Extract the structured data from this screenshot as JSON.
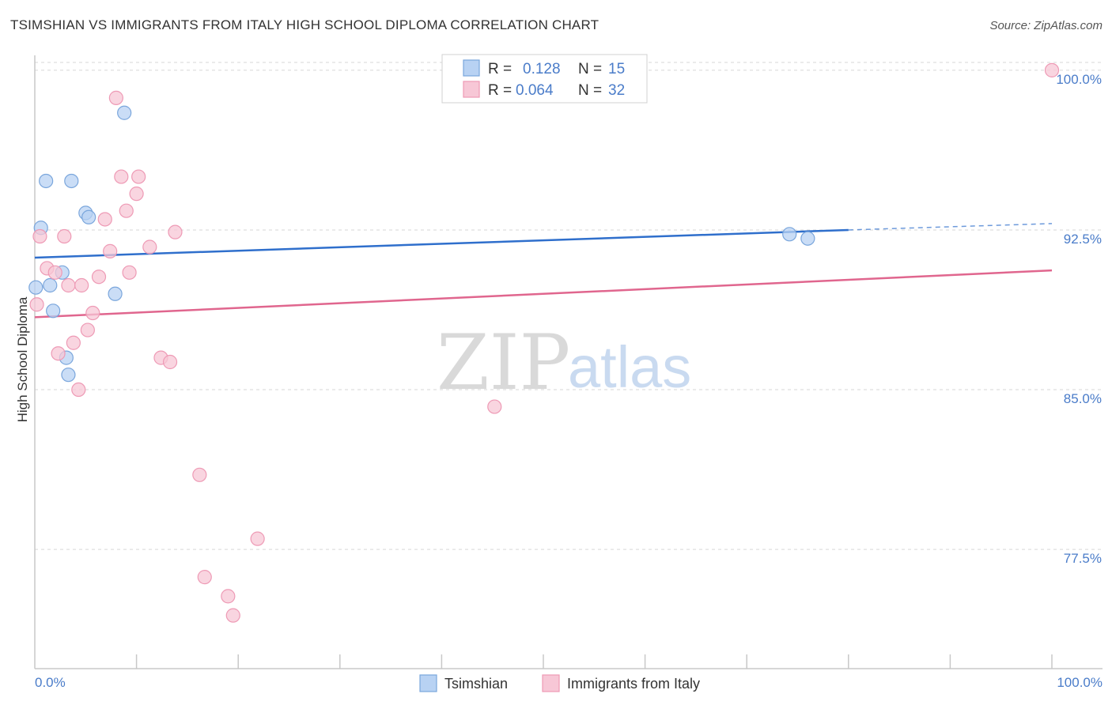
{
  "title": "TSIMSHIAN VS IMMIGRANTS FROM ITALY HIGH SCHOOL DIPLOMA CORRELATION CHART",
  "source": "Source: ZipAtlas.com",
  "watermark": {
    "zip": "ZIP",
    "atlas": "atlas"
  },
  "legend": {
    "r_label": "R =",
    "n_label": "N =",
    "rows": [
      {
        "r": "0.128",
        "n": "15"
      },
      {
        "r": "0.064",
        "n": "32"
      }
    ]
  },
  "colors": {
    "blue_fill": "#b8d2f3",
    "blue_stroke": "#7aa6dc",
    "blue_line": "#2f6fcc",
    "pink_fill": "#f7c7d6",
    "pink_stroke": "#ee9ab5",
    "pink_line": "#e0668e",
    "grid": "#d7d7d7",
    "axis_label": "#4a7cc9"
  },
  "chart_data": {
    "type": "scatter",
    "title": "TSIMSHIAN VS IMMIGRANTS FROM ITALY HIGH SCHOOL DIPLOMA CORRELATION CHART",
    "xlabel": "",
    "ylabel": "High School Diploma",
    "xlim": [
      0,
      100
    ],
    "ylim": [
      71.9,
      100.7
    ],
    "x_tick_labels": [
      "0.0%",
      "100.0%"
    ],
    "y_ticks": [
      77.5,
      85.0,
      92.5,
      100.0
    ],
    "y_tick_labels": [
      "77.5%",
      "85.0%",
      "92.5%",
      "100.0%"
    ],
    "grid": true,
    "legend_position": "bottom-center",
    "series": [
      {
        "name": "Tsimshian",
        "color": "blue",
        "r": 0.128,
        "n": 15,
        "trend": {
          "x": [
            0,
            80
          ],
          "y": [
            91.2,
            92.5
          ],
          "dashed_to": [
            100,
            92.8
          ]
        },
        "points": [
          [
            1.1,
            94.8
          ],
          [
            3.6,
            94.8
          ],
          [
            8.8,
            98.0
          ],
          [
            0.6,
            92.6
          ],
          [
            5.0,
            93.3
          ],
          [
            5.3,
            93.1
          ],
          [
            0.1,
            89.8
          ],
          [
            1.5,
            89.9
          ],
          [
            2.7,
            90.5
          ],
          [
            7.9,
            89.5
          ],
          [
            1.8,
            88.7
          ],
          [
            3.1,
            86.5
          ],
          [
            3.3,
            85.7
          ],
          [
            74.2,
            92.3
          ],
          [
            76.0,
            92.1
          ]
        ]
      },
      {
        "name": "Immigrants from Italy",
        "color": "pink",
        "r": 0.064,
        "n": 32,
        "trend": {
          "x": [
            0,
            100
          ],
          "y": [
            88.4,
            90.6
          ]
        },
        "points": [
          [
            100.0,
            100.0
          ],
          [
            8.0,
            98.7
          ],
          [
            8.5,
            95.0
          ],
          [
            10.2,
            95.0
          ],
          [
            10.0,
            94.2
          ],
          [
            9.0,
            93.4
          ],
          [
            6.9,
            93.0
          ],
          [
            0.5,
            92.2
          ],
          [
            2.9,
            92.2
          ],
          [
            13.8,
            92.4
          ],
          [
            7.4,
            91.5
          ],
          [
            11.3,
            91.7
          ],
          [
            1.2,
            90.7
          ],
          [
            2.0,
            90.5
          ],
          [
            9.3,
            90.5
          ],
          [
            6.3,
            90.3
          ],
          [
            3.3,
            89.9
          ],
          [
            4.6,
            89.9
          ],
          [
            0.2,
            89.0
          ],
          [
            5.7,
            88.6
          ],
          [
            5.2,
            87.8
          ],
          [
            3.8,
            87.2
          ],
          [
            2.3,
            86.7
          ],
          [
            12.4,
            86.5
          ],
          [
            13.3,
            86.3
          ],
          [
            4.3,
            85.0
          ],
          [
            45.2,
            84.2
          ],
          [
            16.2,
            81.0
          ],
          [
            21.9,
            78.0
          ],
          [
            16.7,
            76.2
          ],
          [
            19.0,
            75.3
          ],
          [
            19.5,
            74.4
          ]
        ]
      }
    ]
  }
}
